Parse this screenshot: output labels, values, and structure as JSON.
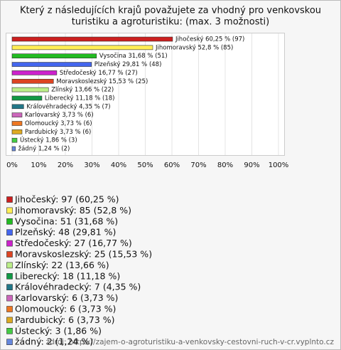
{
  "chart_data": {
    "type": "bar",
    "orientation": "horizontal",
    "title": [
      "Který z následujících krajů považujete za vhodný pro venkovskou",
      "turistiku a agroturistiku: (max. 3 možnosti)"
    ],
    "categories": [
      "Jihočeský",
      "Jihomoravský",
      "Vysočina",
      "Plzeňský",
      "Středočeský",
      "Moravskoslezský",
      "Zlínský",
      "Liberecký",
      "Královéhradecký",
      "Karlovarský",
      "Olomoucký",
      "Pardubický",
      "Ústecký",
      "žádný"
    ],
    "values": [
      60.25,
      52.8,
      31.68,
      29.81,
      16.77,
      15.53,
      13.66,
      11.18,
      4.35,
      3.73,
      3.73,
      3.73,
      1.86,
      1.24
    ],
    "value_labels": [
      "Jihočeský 60,25 % (97)",
      "Jihomoravský 52,8 % (85)",
      "Vysočina 31,68 % (51)",
      "Plzeňský 29,81 % (48)",
      "Středočeský 16,77 % (27)",
      "Moravskoslezský 15,53 % (25)",
      "Zlínský 13,66 % (22)",
      "Liberecký 11,18 % (18)",
      "Královéhradecký 4,35 % (7)",
      "Karlovarský 3,73 % (6)",
      "Olomoucký 3,73 % (6)",
      "Pardubický 3,73 % (6)",
      "Ústecký 1,86 % (3)",
      "žádný 1,24 % (2)"
    ],
    "legend_labels": [
      "Jihočeský: 97 (60,25 %)",
      "Jihomoravský: 85 (52,8 %)",
      "Vysočina: 51 (31,68 %)",
      "Plzeňský: 48 (29,81 %)",
      "Středočeský: 27 (16,77 %)",
      "Moravskoslezský: 25 (15,53 %)",
      "Zlínský: 22 (13,66 %)",
      "Liberecký: 18 (11,18 %)",
      "Královéhradecký: 7 (4,35 %)",
      "Karlovarský: 6 (3,73 %)",
      "Olomoucký: 6 (3,73 %)",
      "Pardubický: 6 (3,73 %)",
      "Ústecký: 3 (1,86 %)",
      "žádný: 2 (1,24 %)"
    ],
    "colors": [
      "#cc1f1f",
      "#ffee55",
      "#22bb22",
      "#4466ee",
      "#cc22cc",
      "#dd4422",
      "#bbee88",
      "#119944",
      "#227788",
      "#cc66bb",
      "#ee7722",
      "#ddaa22",
      "#44cc44",
      "#6688dd"
    ],
    "xlim": [
      0,
      100
    ],
    "xticks": [
      {
        "value": 0,
        "label": "0%"
      },
      {
        "value": 10,
        "label": "10%"
      },
      {
        "value": 20,
        "label": "20%"
      },
      {
        "value": 30,
        "label": "30%"
      },
      {
        "value": 40,
        "label": "40%"
      },
      {
        "value": 50,
        "label": "50%"
      },
      {
        "value": 60,
        "label": "60%"
      },
      {
        "value": 70,
        "label": "70%"
      },
      {
        "value": 80,
        "label": "80%"
      },
      {
        "value": 90,
        "label": "90%"
      },
      {
        "value": 100,
        "label": "100%"
      }
    ],
    "grid": true,
    "source": "zdroj: https://zajem-o-agroturistiku-a-venkovsky-cestovni-ruch-v-cr.vyplnto.cz"
  }
}
